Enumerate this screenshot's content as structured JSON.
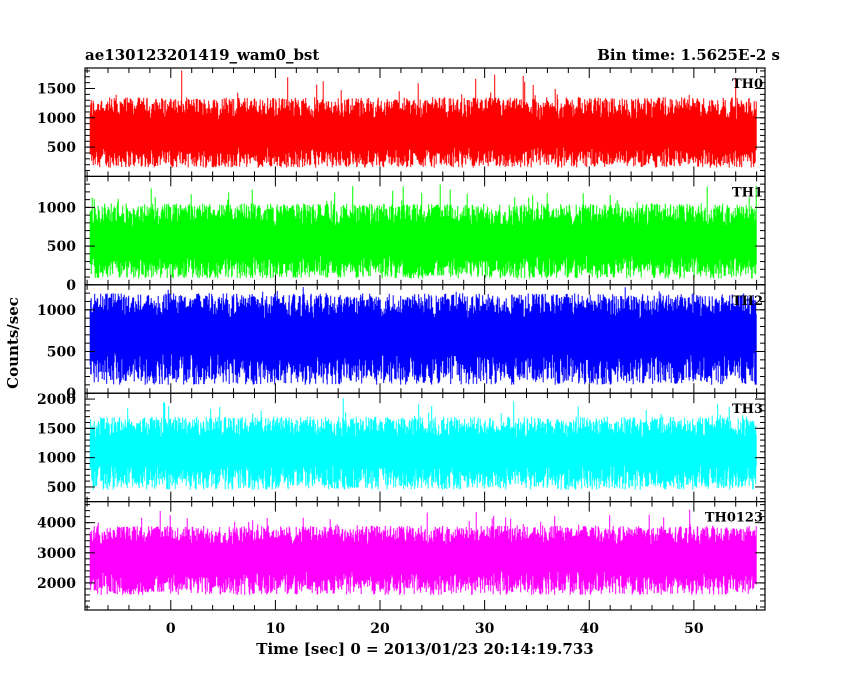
{
  "chart_data": {
    "type": "line",
    "title_left": "ae130123201419_wam0_bst",
    "title_right": "Bin time: 1.5625E-2 s",
    "xlabel": "Time [sec] 0 = 2013/01/23 20:14:19.733",
    "ylabel": "Counts/sec",
    "xlim": [
      -8.2,
      56.8
    ],
    "xticks": [
      0,
      10,
      20,
      30,
      40,
      50
    ],
    "grid": false,
    "style": "histogram-step light curves, one panel per energy channel",
    "x_data_range": [
      -7.7,
      56.0
    ],
    "panels": [
      {
        "name": "TH0",
        "color": "#ff0000",
        "ylim": [
          0,
          1850
        ],
        "yticks": [
          500,
          1000,
          1500
        ],
        "baseline": 650,
        "typical_min": 150,
        "typical_max": 1350,
        "peak_max": 1850
      },
      {
        "name": "TH1",
        "color": "#00ff00",
        "ylim": [
          0,
          1400
        ],
        "yticks": [
          0,
          500,
          1000
        ],
        "baseline": 520,
        "typical_min": 80,
        "typical_max": 1050,
        "peak_max": 1350
      },
      {
        "name": "TH2",
        "color": "#0000ff",
        "ylim": [
          0,
          1300
        ],
        "yticks": [
          0,
          500,
          1000
        ],
        "baseline": 650,
        "typical_min": 100,
        "typical_max": 1200,
        "peak_max": 1300
      },
      {
        "name": "TH3",
        "color": "#00ffff",
        "ylim": [
          250,
          2100
        ],
        "yticks": [
          500,
          1000,
          1500,
          2000
        ],
        "baseline": 1050,
        "typical_min": 450,
        "typical_max": 1700,
        "peak_max": 2050
      },
      {
        "name": "TH0123",
        "color": "#ff00ff",
        "ylim": [
          1100,
          4700
        ],
        "yticks": [
          2000,
          3000,
          4000
        ],
        "baseline": 2750,
        "typical_min": 1600,
        "typical_max": 3900,
        "peak_max": 4500
      }
    ]
  }
}
